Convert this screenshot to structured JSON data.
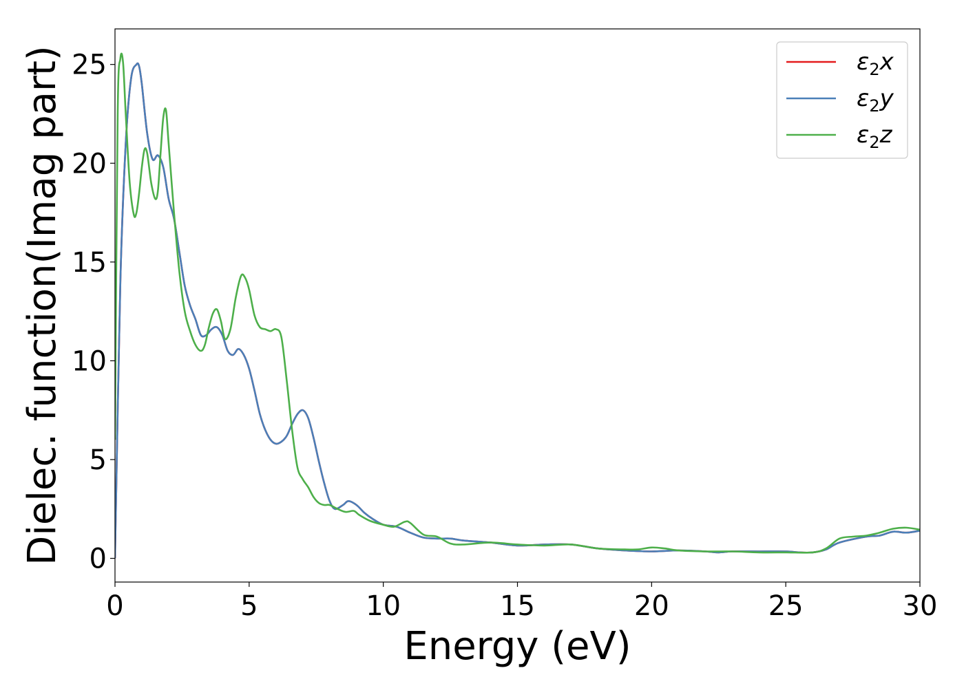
{
  "chart_data": {
    "type": "line",
    "title": "",
    "xlabel": "Energy (eV)",
    "ylabel": "Dielec. function(Imag part)",
    "xlim": [
      0,
      30
    ],
    "ylim": [
      -1.2,
      26.8
    ],
    "xticks": [
      0,
      5,
      10,
      15,
      20,
      25,
      30
    ],
    "yticks": [
      0,
      5,
      10,
      15,
      20,
      25
    ],
    "grid": false,
    "legend_position": "top-right",
    "series": [
      {
        "name": "ε₂x",
        "legend_base": "ε",
        "legend_sub": "2",
        "legend_axis": "x",
        "color": "#e41a1c",
        "x": [
          0,
          0.2,
          0.4,
          0.6,
          0.8,
          0.9,
          1.0,
          1.2,
          1.4,
          1.6,
          1.8,
          2.0,
          2.2,
          2.4,
          2.6,
          2.8,
          3.0,
          3.2,
          3.4,
          3.6,
          3.8,
          4.0,
          4.2,
          4.4,
          4.6,
          4.8,
          5.0,
          5.2,
          5.4,
          5.6,
          5.8,
          6.0,
          6.2,
          6.4,
          6.6,
          6.8,
          7.0,
          7.2,
          7.4,
          7.6,
          7.8,
          8.0,
          8.2,
          8.5,
          8.7,
          9.0,
          9.3,
          9.6,
          10.0,
          10.5,
          11.0,
          11.5,
          12.0,
          12.5,
          13.0,
          14.0,
          15.0,
          16.0,
          17.0,
          18.0,
          19.0,
          20.0,
          21.0,
          22.0,
          22.5,
          23.0,
          24.0,
          25.0,
          25.5,
          26.0,
          26.5,
          27.0,
          28.0,
          28.5,
          29.0,
          29.5,
          30.0
        ],
        "y": [
          0,
          14,
          21,
          24.3,
          25.0,
          24.9,
          24.0,
          21.5,
          20.2,
          20.4,
          19.8,
          18.2,
          17.2,
          15.5,
          13.8,
          12.8,
          12.1,
          11.3,
          11.3,
          11.6,
          11.7,
          11.3,
          10.5,
          10.3,
          10.6,
          10.3,
          9.6,
          8.5,
          7.3,
          6.5,
          6.0,
          5.8,
          5.9,
          6.2,
          6.8,
          7.3,
          7.5,
          7.1,
          6.1,
          4.9,
          3.8,
          2.9,
          2.5,
          2.7,
          2.9,
          2.7,
          2.3,
          2.0,
          1.7,
          1.6,
          1.3,
          1.05,
          1.0,
          1.0,
          0.9,
          0.8,
          0.65,
          0.7,
          0.7,
          0.5,
          0.4,
          0.35,
          0.4,
          0.35,
          0.3,
          0.35,
          0.35,
          0.35,
          0.3,
          0.3,
          0.45,
          0.8,
          1.1,
          1.15,
          1.35,
          1.3,
          1.4
        ]
      },
      {
        "name": "ε₂y",
        "legend_base": "ε",
        "legend_sub": "2",
        "legend_axis": "y",
        "color": "#4a7fb8",
        "x": [
          0,
          0.2,
          0.4,
          0.6,
          0.8,
          0.9,
          1.0,
          1.2,
          1.4,
          1.6,
          1.8,
          2.0,
          2.2,
          2.4,
          2.6,
          2.8,
          3.0,
          3.2,
          3.4,
          3.6,
          3.8,
          4.0,
          4.2,
          4.4,
          4.6,
          4.8,
          5.0,
          5.2,
          5.4,
          5.6,
          5.8,
          6.0,
          6.2,
          6.4,
          6.6,
          6.8,
          7.0,
          7.2,
          7.4,
          7.6,
          7.8,
          8.0,
          8.2,
          8.5,
          8.7,
          9.0,
          9.3,
          9.6,
          10.0,
          10.5,
          11.0,
          11.5,
          12.0,
          12.5,
          13.0,
          14.0,
          15.0,
          16.0,
          17.0,
          18.0,
          19.0,
          20.0,
          21.0,
          22.0,
          22.5,
          23.0,
          24.0,
          25.0,
          25.5,
          26.0,
          26.5,
          27.0,
          28.0,
          28.5,
          29.0,
          29.5,
          30.0
        ],
        "y": [
          0,
          14,
          21,
          24.3,
          25.0,
          24.9,
          24.0,
          21.5,
          20.2,
          20.4,
          19.8,
          18.2,
          17.2,
          15.5,
          13.8,
          12.8,
          12.1,
          11.3,
          11.3,
          11.6,
          11.7,
          11.3,
          10.5,
          10.3,
          10.6,
          10.3,
          9.6,
          8.5,
          7.3,
          6.5,
          6.0,
          5.8,
          5.9,
          6.2,
          6.8,
          7.3,
          7.5,
          7.1,
          6.1,
          4.9,
          3.8,
          2.9,
          2.5,
          2.7,
          2.9,
          2.7,
          2.3,
          2.0,
          1.7,
          1.6,
          1.3,
          1.05,
          1.0,
          1.0,
          0.9,
          0.8,
          0.65,
          0.7,
          0.7,
          0.5,
          0.4,
          0.35,
          0.4,
          0.35,
          0.3,
          0.35,
          0.35,
          0.35,
          0.3,
          0.3,
          0.45,
          0.8,
          1.1,
          1.15,
          1.35,
          1.3,
          1.4
        ]
      },
      {
        "name": "ε₂z",
        "legend_base": "ε",
        "legend_sub": "2",
        "legend_axis": "z",
        "color": "#4daf4a",
        "x": [
          0,
          0.1,
          0.2,
          0.3,
          0.4,
          0.55,
          0.7,
          0.8,
          0.9,
          1.0,
          1.1,
          1.2,
          1.35,
          1.5,
          1.6,
          1.7,
          1.8,
          1.9,
          2.0,
          2.2,
          2.4,
          2.6,
          2.8,
          3.0,
          3.2,
          3.35,
          3.5,
          3.65,
          3.8,
          3.95,
          4.1,
          4.3,
          4.5,
          4.7,
          4.85,
          5.0,
          5.2,
          5.4,
          5.6,
          5.8,
          6.0,
          6.2,
          6.4,
          6.6,
          6.8,
          7.0,
          7.2,
          7.4,
          7.6,
          7.8,
          8.0,
          8.3,
          8.6,
          8.9,
          9.1,
          9.5,
          10.0,
          10.4,
          10.8,
          11.0,
          11.5,
          12.0,
          12.5,
          13.0,
          14.0,
          15.0,
          16.0,
          17.0,
          18.0,
          19.0,
          19.5,
          20.0,
          20.5,
          21.0,
          22.0,
          23.0,
          24.0,
          25.0,
          26.0,
          26.5,
          27.0,
          27.5,
          28.0,
          28.5,
          29.0,
          29.5,
          30.0
        ],
        "y": [
          6,
          22.5,
          25.3,
          25.1,
          22.5,
          19.0,
          17.4,
          17.5,
          18.5,
          19.8,
          20.7,
          20.5,
          19.0,
          18.2,
          18.6,
          20.5,
          22.3,
          22.7,
          21.0,
          17.5,
          14.5,
          12.5,
          11.5,
          10.8,
          10.5,
          10.8,
          11.7,
          12.4,
          12.6,
          12.0,
          11.1,
          11.6,
          13.2,
          14.3,
          14.2,
          13.6,
          12.3,
          11.7,
          11.6,
          11.5,
          11.6,
          11.2,
          9.0,
          6.5,
          4.6,
          4.0,
          3.6,
          3.1,
          2.8,
          2.7,
          2.7,
          2.5,
          2.35,
          2.4,
          2.2,
          1.9,
          1.7,
          1.6,
          1.85,
          1.8,
          1.2,
          1.1,
          0.75,
          0.7,
          0.8,
          0.7,
          0.65,
          0.7,
          0.5,
          0.45,
          0.45,
          0.55,
          0.5,
          0.4,
          0.35,
          0.35,
          0.3,
          0.3,
          0.3,
          0.5,
          1.0,
          1.1,
          1.15,
          1.3,
          1.5,
          1.55,
          1.45
        ]
      }
    ]
  }
}
